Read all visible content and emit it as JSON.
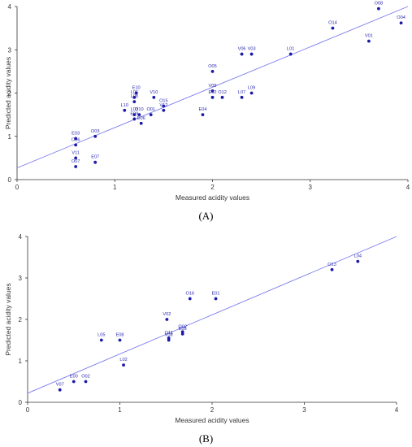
{
  "chart_data": [
    {
      "type": "scatter",
      "panel_label": "(A)",
      "xlabel": "Measured acidity values",
      "ylabel": "Predicted acidity values",
      "xlim": [
        0,
        4
      ],
      "ylim": [
        0,
        4
      ],
      "xticks": [
        "0",
        "1",
        "2",
        "3",
        "4"
      ],
      "yticks": [
        "0",
        "1",
        "2",
        "3",
        "4"
      ],
      "point_color": "#1a1aa6",
      "line_color": "#7a7af0",
      "grid": false,
      "fit_line": {
        "x": [
          0,
          4
        ],
        "y": [
          0.27,
          4.0
        ]
      },
      "points": [
        {
          "label": "O04",
          "x": 3.93,
          "y": 3.62
        },
        {
          "label": "O08",
          "x": 3.7,
          "y": 3.95
        },
        {
          "label": "O14",
          "x": 3.23,
          "y": 3.5
        },
        {
          "label": "V01",
          "x": 3.6,
          "y": 3.2
        },
        {
          "label": "L01",
          "x": 2.8,
          "y": 2.9
        },
        {
          "label": "V06",
          "x": 2.3,
          "y": 2.9
        },
        {
          "label": "V03",
          "x": 2.4,
          "y": 2.9
        },
        {
          "label": "O05",
          "x": 2.0,
          "y": 2.5
        },
        {
          "label": "V09",
          "x": 2.0,
          "y": 2.05
        },
        {
          "label": "O12",
          "x": 2.1,
          "y": 1.9
        },
        {
          "label": "E02",
          "x": 2.0,
          "y": 1.9
        },
        {
          "label": "L09",
          "x": 2.4,
          "y": 2.0
        },
        {
          "label": "L07",
          "x": 2.3,
          "y": 1.9
        },
        {
          "label": "E04",
          "x": 1.9,
          "y": 1.5
        },
        {
          "label": "V10",
          "x": 1.4,
          "y": 1.9
        },
        {
          "label": "O15",
          "x": 1.5,
          "y": 1.7
        },
        {
          "label": "V12",
          "x": 1.5,
          "y": 1.6
        },
        {
          "label": "O01",
          "x": 1.37,
          "y": 1.5
        },
        {
          "label": "E10",
          "x": 1.22,
          "y": 2.0
        },
        {
          "label": "L06",
          "x": 1.2,
          "y": 1.9
        },
        {
          "label": "L08",
          "x": 1.2,
          "y": 1.8
        },
        {
          "label": "L10",
          "x": 1.1,
          "y": 1.6
        },
        {
          "label": "L03",
          "x": 1.2,
          "y": 1.5
        },
        {
          "label": "O10",
          "x": 1.25,
          "y": 1.5
        },
        {
          "label": "E09",
          "x": 1.2,
          "y": 1.4
        },
        {
          "label": "E06",
          "x": 1.27,
          "y": 1.3
        },
        {
          "label": "O03",
          "x": 0.8,
          "y": 1.0
        },
        {
          "label": "E03",
          "x": 0.6,
          "y": 0.95
        },
        {
          "label": "O06",
          "x": 0.6,
          "y": 0.8
        },
        {
          "label": "V11",
          "x": 0.6,
          "y": 0.5
        },
        {
          "label": "O07",
          "x": 0.6,
          "y": 0.3
        },
        {
          "label": "E07",
          "x": 0.8,
          "y": 0.4
        }
      ]
    },
    {
      "type": "scatter",
      "panel_label": "(B)",
      "xlabel": "Measured acidity values",
      "ylabel": "Predicted acidity values",
      "xlim": [
        0,
        4
      ],
      "ylim": [
        0,
        4
      ],
      "xticks": [
        "0",
        "1",
        "2",
        "3",
        "4"
      ],
      "yticks": [
        "0",
        "1",
        "2",
        "3",
        "4"
      ],
      "point_color": "#1a1aa6",
      "line_color": "#7a7af0",
      "grid": false,
      "fit_line": {
        "x": [
          0,
          4
        ],
        "y": [
          0.22,
          4.0
        ]
      },
      "points": [
        {
          "label": "L04",
          "x": 3.58,
          "y": 3.4
        },
        {
          "label": "O13",
          "x": 3.3,
          "y": 3.2
        },
        {
          "label": "O16",
          "x": 1.76,
          "y": 2.5
        },
        {
          "label": "E01",
          "x": 2.04,
          "y": 2.5
        },
        {
          "label": "V02",
          "x": 1.51,
          "y": 2.0
        },
        {
          "label": "O11",
          "x": 1.53,
          "y": 1.55
        },
        {
          "label": "V08",
          "x": 1.53,
          "y": 1.5
        },
        {
          "label": "O02",
          "x": 1.68,
          "y": 1.7
        },
        {
          "label": "E05",
          "x": 1.68,
          "y": 1.65
        },
        {
          "label": "L05",
          "x": 0.8,
          "y": 1.5
        },
        {
          "label": "E08",
          "x": 1.0,
          "y": 1.5
        },
        {
          "label": "L02",
          "x": 1.04,
          "y": 0.9
        },
        {
          "label": "V07",
          "x": 0.35,
          "y": 0.3
        },
        {
          "label": "E00",
          "x": 0.5,
          "y": 0.5
        },
        {
          "label": "O02",
          "x": 0.63,
          "y": 0.5
        }
      ]
    }
  ]
}
